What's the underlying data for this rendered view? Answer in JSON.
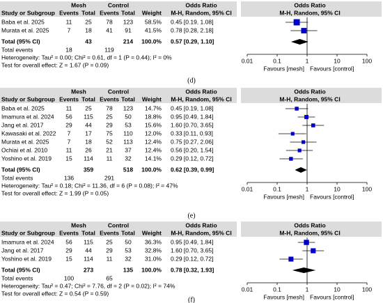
{
  "chart_data": [
    {
      "type": "forest",
      "label": "(d)",
      "headers": {
        "study": "Study or Subgroup",
        "group1": "Mesh",
        "group2": "Control",
        "events1": "Events",
        "total1": "Total",
        "events2": "Events",
        "total2": "Total",
        "weight": "Weight",
        "or": "Odds Ratio",
        "method": "M-H, Random, 95% CI",
        "plot_title": "Odds Ratio",
        "plot_method": "M-H, Random, 95% CI"
      },
      "rows": [
        [
          "Baba et al. 2025",
          "11",
          "25",
          "78",
          "123",
          "58.5%",
          "0.45 [0.19, 1.08]"
        ],
        [
          "Murata et al. 2025",
          "7",
          "18",
          "41",
          "91",
          "41.5%",
          "0.78 [0.28, 2.18]"
        ]
      ],
      "values": [
        0.45,
        0.78
      ],
      "ci_low": [
        0.19,
        0.28
      ],
      "ci_high": [
        1.08,
        2.18
      ],
      "weights": [
        58.5,
        41.5
      ],
      "total": {
        "label": "Total (95% CI)",
        "total1": "43",
        "total2": "214",
        "weight": "100.0%",
        "or": "0.57 [0.29, 1.10]",
        "value": 0.57,
        "ci_low": 0.29,
        "ci_high": 1.1
      },
      "events": {
        "label": "Total events",
        "events1": "18",
        "events2": "119"
      },
      "heterogeneity": "Heterogeneity: Tau² = 0.00; Chi² = 0.61, df = 1 (P = 0.44); I² = 0%",
      "overall": "Test for overall effect: Z = 1.67 (P = 0.09)",
      "xlim": [
        0.01,
        100
      ],
      "xticks": [
        0.01,
        0.1,
        1,
        10,
        100
      ],
      "log_x": true,
      "ref_line": 1,
      "xlabel_left": "Favours [mesh]",
      "xlabel_right": "Favours [control]",
      "color": "#0000c8"
    },
    {
      "type": "forest",
      "label": "(e)",
      "headers": {
        "study": "Study or Subgroup",
        "group1": "Mesh",
        "group2": "Control",
        "events1": "Events",
        "total1": "Total",
        "events2": "Events",
        "total2": "Total",
        "weight": "Weight",
        "or": "Odds Ratio",
        "method": "M-H, Random, 95% CI",
        "plot_title": "Odds Ratio",
        "plot_method": "M-H, Random, 95% CI"
      },
      "rows": [
        [
          "Baba et al. 2025",
          "11",
          "25",
          "78",
          "123",
          "14.7%",
          "0.45 [0.19, 1.08]"
        ],
        [
          "Imamura et al. 2024",
          "56",
          "115",
          "25",
          "50",
          "18.8%",
          "0.95 [0.49, 1.84]"
        ],
        [
          "Jang et al. 2017",
          "29",
          "44",
          "29",
          "53",
          "15.6%",
          "1.60 [0.70, 3.65]"
        ],
        [
          "Kawasaki et al. 2022",
          "7",
          "17",
          "75",
          "110",
          "12.0%",
          "0.33 [0.11, 0.93]"
        ],
        [
          "Murata et al. 2025",
          "7",
          "18",
          "52",
          "113",
          "12.4%",
          "0.75 [0.27, 2.06]"
        ],
        [
          "Ochiai et al. 2010",
          "11",
          "26",
          "21",
          "37",
          "12.4%",
          "0.56 [0.20, 1.54]"
        ],
        [
          "Yoshino et al. 2019",
          "15",
          "114",
          "11",
          "32",
          "14.1%",
          "0.29 [0.12, 0.72]"
        ]
      ],
      "values": [
        0.45,
        0.95,
        1.6,
        0.33,
        0.75,
        0.56,
        0.29
      ],
      "ci_low": [
        0.19,
        0.49,
        0.7,
        0.11,
        0.27,
        0.2,
        0.12
      ],
      "ci_high": [
        1.08,
        1.84,
        3.65,
        0.93,
        2.06,
        1.54,
        0.72
      ],
      "weights": [
        14.7,
        18.8,
        15.6,
        12.0,
        12.4,
        12.4,
        14.1
      ],
      "total": {
        "label": "Total (95% CI)",
        "total1": "359",
        "total2": "518",
        "weight": "100.0%",
        "or": "0.62 [0.39, 0.99]",
        "value": 0.62,
        "ci_low": 0.39,
        "ci_high": 0.99
      },
      "events": {
        "label": "Total events",
        "events1": "136",
        "events2": "291"
      },
      "heterogeneity": "Heterogeneity: Tau² = 0.18; Chi² = 11.36, df = 6 (P = 0.08); I² = 47%",
      "overall": "Test for overall effect: Z = 1.99 (P = 0.05)",
      "xlim": [
        0.01,
        100
      ],
      "xticks": [
        0.01,
        0.1,
        1,
        10,
        100
      ],
      "log_x": true,
      "ref_line": 1,
      "xlabel_left": "Favours [mesh]",
      "xlabel_right": "Favours [control]",
      "color": "#0000c8"
    },
    {
      "type": "forest",
      "label": "(f)",
      "headers": {
        "study": "Study or Subgroup",
        "group1": "Mesh",
        "group2": "Control",
        "events1": "Events",
        "total1": "Total",
        "events2": "Events",
        "total2": "Total",
        "weight": "Weight",
        "or": "Odds Ratio",
        "method": "M-H, Random, 95% CI",
        "plot_title": "Odds Ratio",
        "plot_method": "M-H, Random, 95% CI"
      },
      "rows": [
        [
          "Imamura et al. 2024",
          "56",
          "115",
          "25",
          "50",
          "36.3%",
          "0.95 [0.49, 1.84]"
        ],
        [
          "Jang et al. 2017",
          "29",
          "44",
          "29",
          "53",
          "32.8%",
          "1.60 [0.70, 3.65]"
        ],
        [
          "Yoshino et al. 2019",
          "15",
          "114",
          "11",
          "32",
          "31.0%",
          "0.29 [0.12, 0.72]"
        ]
      ],
      "values": [
        0.95,
        1.6,
        0.29
      ],
      "ci_low": [
        0.49,
        0.7,
        0.12
      ],
      "ci_high": [
        1.84,
        3.65,
        0.72
      ],
      "weights": [
        36.3,
        32.8,
        31.0
      ],
      "total": {
        "label": "Total (95% CI)",
        "total1": "273",
        "total2": "135",
        "weight": "100.0%",
        "or": "0.78 [0.32, 1.93]",
        "value": 0.78,
        "ci_low": 0.32,
        "ci_high": 1.93
      },
      "events": {
        "label": "Total events",
        "events1": "100",
        "events2": "65"
      },
      "heterogeneity": "Heterogeneity: Tau² = 0.47; Chi² = 7.76, df = 2 (P = 0.02); I² = 74%",
      "overall": "Test for overall effect: Z = 0.54 (P = 0.59)",
      "xlim": [
        0.01,
        100
      ],
      "xticks": [
        0.01,
        0.1,
        1,
        10,
        100
      ],
      "log_x": true,
      "ref_line": 1,
      "xlabel_left": "Favours [mesh]",
      "xlabel_right": "Favours [control]",
      "color": "#0000c8"
    }
  ]
}
